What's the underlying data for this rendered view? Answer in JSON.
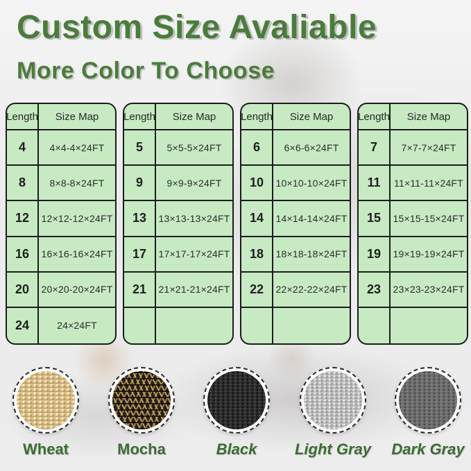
{
  "page": {
    "title": "Custom Size Avaliable",
    "subtitle": "More Color To Choose"
  },
  "colors": {
    "heading_green": "#4a7c3b",
    "label_green": "#3c6b33",
    "table_background": "#c7eac3",
    "table_border": "#1c1c1c"
  },
  "tables": [
    {
      "headers": [
        "Length",
        "Size Map"
      ],
      "rows": [
        [
          "4",
          "4×4-4×24FT"
        ],
        [
          "8",
          "8×8-8×24FT"
        ],
        [
          "12",
          "12×12-12×24FT"
        ],
        [
          "16",
          "16×16-16×24FT"
        ],
        [
          "20",
          "20×20-20×24FT"
        ],
        [
          "24",
          "24×24FT"
        ]
      ]
    },
    {
      "headers": [
        "Length",
        "Size Map"
      ],
      "rows": [
        [
          "5",
          "5×5-5×24FT"
        ],
        [
          "9",
          "9×9-9×24FT"
        ],
        [
          "13",
          "13×13-13×24FT"
        ],
        [
          "17",
          "17×17-17×24FT"
        ],
        [
          "21",
          "21×21-21×24FT"
        ],
        [
          "",
          ""
        ]
      ]
    },
    {
      "headers": [
        "Length",
        "Size Map"
      ],
      "rows": [
        [
          "6",
          "6×6-6×24FT"
        ],
        [
          "10",
          "10×10-10×24FT"
        ],
        [
          "14",
          "14×14-14×24FT"
        ],
        [
          "18",
          "18×18-18×24FT"
        ],
        [
          "22",
          "22×22-22×24FT"
        ],
        [
          "",
          ""
        ]
      ]
    },
    {
      "headers": [
        "Length",
        "Size Map"
      ],
      "rows": [
        [
          "7",
          "7×7-7×24FT"
        ],
        [
          "11",
          "11×11-11×24FT"
        ],
        [
          "15",
          "15×15-15×24FT"
        ],
        [
          "19",
          "19×19-19×24FT"
        ],
        [
          "23",
          "23×23-23×24FT"
        ],
        [
          "",
          ""
        ]
      ]
    }
  ],
  "swatches": [
    {
      "label": "Wheat",
      "italic": false,
      "texture": "wheat",
      "base_color": "#dcc189"
    },
    {
      "label": "Mocha",
      "italic": false,
      "texture": "mocha",
      "base_color": "#262019"
    },
    {
      "label": "Black",
      "italic": true,
      "texture": "black",
      "base_color": "#2e2e2e"
    },
    {
      "label": "Light Gray",
      "italic": true,
      "texture": "light-gray",
      "base_color": "#b8b8b8"
    },
    {
      "label": "Dark Gray",
      "italic": true,
      "texture": "dark-gray",
      "base_color": "#6e6e6e"
    }
  ]
}
